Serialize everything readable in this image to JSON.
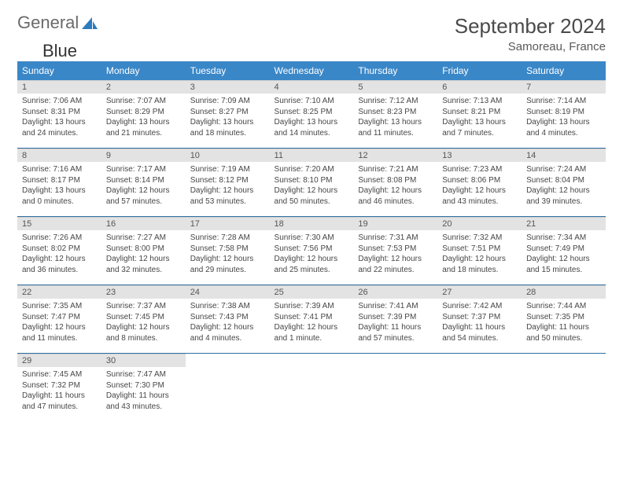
{
  "brand": {
    "part1": "General",
    "part2": "Blue"
  },
  "header": {
    "month_title": "September 2024",
    "location": "Samoreau, France"
  },
  "weekdays": [
    "Sunday",
    "Monday",
    "Tuesday",
    "Wednesday",
    "Thursday",
    "Friday",
    "Saturday"
  ],
  "colors": {
    "header_bg": "#3a87c8",
    "header_text": "#ffffff",
    "daynum_bg": "#e3e3e3",
    "row_divider": "#2e6ea3",
    "brand_accent": "#2b7bbd",
    "brand_gray": "#6a6a6a"
  },
  "grid": [
    [
      {
        "n": "1",
        "sr": "Sunrise: 7:06 AM",
        "ss": "Sunset: 8:31 PM",
        "d1": "Daylight: 13 hours",
        "d2": "and 24 minutes."
      },
      {
        "n": "2",
        "sr": "Sunrise: 7:07 AM",
        "ss": "Sunset: 8:29 PM",
        "d1": "Daylight: 13 hours",
        "d2": "and 21 minutes."
      },
      {
        "n": "3",
        "sr": "Sunrise: 7:09 AM",
        "ss": "Sunset: 8:27 PM",
        "d1": "Daylight: 13 hours",
        "d2": "and 18 minutes."
      },
      {
        "n": "4",
        "sr": "Sunrise: 7:10 AM",
        "ss": "Sunset: 8:25 PM",
        "d1": "Daylight: 13 hours",
        "d2": "and 14 minutes."
      },
      {
        "n": "5",
        "sr": "Sunrise: 7:12 AM",
        "ss": "Sunset: 8:23 PM",
        "d1": "Daylight: 13 hours",
        "d2": "and 11 minutes."
      },
      {
        "n": "6",
        "sr": "Sunrise: 7:13 AM",
        "ss": "Sunset: 8:21 PM",
        "d1": "Daylight: 13 hours",
        "d2": "and 7 minutes."
      },
      {
        "n": "7",
        "sr": "Sunrise: 7:14 AM",
        "ss": "Sunset: 8:19 PM",
        "d1": "Daylight: 13 hours",
        "d2": "and 4 minutes."
      }
    ],
    [
      {
        "n": "8",
        "sr": "Sunrise: 7:16 AM",
        "ss": "Sunset: 8:17 PM",
        "d1": "Daylight: 13 hours",
        "d2": "and 0 minutes."
      },
      {
        "n": "9",
        "sr": "Sunrise: 7:17 AM",
        "ss": "Sunset: 8:14 PM",
        "d1": "Daylight: 12 hours",
        "d2": "and 57 minutes."
      },
      {
        "n": "10",
        "sr": "Sunrise: 7:19 AM",
        "ss": "Sunset: 8:12 PM",
        "d1": "Daylight: 12 hours",
        "d2": "and 53 minutes."
      },
      {
        "n": "11",
        "sr": "Sunrise: 7:20 AM",
        "ss": "Sunset: 8:10 PM",
        "d1": "Daylight: 12 hours",
        "d2": "and 50 minutes."
      },
      {
        "n": "12",
        "sr": "Sunrise: 7:21 AM",
        "ss": "Sunset: 8:08 PM",
        "d1": "Daylight: 12 hours",
        "d2": "and 46 minutes."
      },
      {
        "n": "13",
        "sr": "Sunrise: 7:23 AM",
        "ss": "Sunset: 8:06 PM",
        "d1": "Daylight: 12 hours",
        "d2": "and 43 minutes."
      },
      {
        "n": "14",
        "sr": "Sunrise: 7:24 AM",
        "ss": "Sunset: 8:04 PM",
        "d1": "Daylight: 12 hours",
        "d2": "and 39 minutes."
      }
    ],
    [
      {
        "n": "15",
        "sr": "Sunrise: 7:26 AM",
        "ss": "Sunset: 8:02 PM",
        "d1": "Daylight: 12 hours",
        "d2": "and 36 minutes."
      },
      {
        "n": "16",
        "sr": "Sunrise: 7:27 AM",
        "ss": "Sunset: 8:00 PM",
        "d1": "Daylight: 12 hours",
        "d2": "and 32 minutes."
      },
      {
        "n": "17",
        "sr": "Sunrise: 7:28 AM",
        "ss": "Sunset: 7:58 PM",
        "d1": "Daylight: 12 hours",
        "d2": "and 29 minutes."
      },
      {
        "n": "18",
        "sr": "Sunrise: 7:30 AM",
        "ss": "Sunset: 7:56 PM",
        "d1": "Daylight: 12 hours",
        "d2": "and 25 minutes."
      },
      {
        "n": "19",
        "sr": "Sunrise: 7:31 AM",
        "ss": "Sunset: 7:53 PM",
        "d1": "Daylight: 12 hours",
        "d2": "and 22 minutes."
      },
      {
        "n": "20",
        "sr": "Sunrise: 7:32 AM",
        "ss": "Sunset: 7:51 PM",
        "d1": "Daylight: 12 hours",
        "d2": "and 18 minutes."
      },
      {
        "n": "21",
        "sr": "Sunrise: 7:34 AM",
        "ss": "Sunset: 7:49 PM",
        "d1": "Daylight: 12 hours",
        "d2": "and 15 minutes."
      }
    ],
    [
      {
        "n": "22",
        "sr": "Sunrise: 7:35 AM",
        "ss": "Sunset: 7:47 PM",
        "d1": "Daylight: 12 hours",
        "d2": "and 11 minutes."
      },
      {
        "n": "23",
        "sr": "Sunrise: 7:37 AM",
        "ss": "Sunset: 7:45 PM",
        "d1": "Daylight: 12 hours",
        "d2": "and 8 minutes."
      },
      {
        "n": "24",
        "sr": "Sunrise: 7:38 AM",
        "ss": "Sunset: 7:43 PM",
        "d1": "Daylight: 12 hours",
        "d2": "and 4 minutes."
      },
      {
        "n": "25",
        "sr": "Sunrise: 7:39 AM",
        "ss": "Sunset: 7:41 PM",
        "d1": "Daylight: 12 hours",
        "d2": "and 1 minute."
      },
      {
        "n": "26",
        "sr": "Sunrise: 7:41 AM",
        "ss": "Sunset: 7:39 PM",
        "d1": "Daylight: 11 hours",
        "d2": "and 57 minutes."
      },
      {
        "n": "27",
        "sr": "Sunrise: 7:42 AM",
        "ss": "Sunset: 7:37 PM",
        "d1": "Daylight: 11 hours",
        "d2": "and 54 minutes."
      },
      {
        "n": "28",
        "sr": "Sunrise: 7:44 AM",
        "ss": "Sunset: 7:35 PM",
        "d1": "Daylight: 11 hours",
        "d2": "and 50 minutes."
      }
    ],
    [
      {
        "n": "29",
        "sr": "Sunrise: 7:45 AM",
        "ss": "Sunset: 7:32 PM",
        "d1": "Daylight: 11 hours",
        "d2": "and 47 minutes."
      },
      {
        "n": "30",
        "sr": "Sunrise: 7:47 AM",
        "ss": "Sunset: 7:30 PM",
        "d1": "Daylight: 11 hours",
        "d2": "and 43 minutes."
      },
      {
        "empty": true
      },
      {
        "empty": true
      },
      {
        "empty": true
      },
      {
        "empty": true
      },
      {
        "empty": true
      }
    ]
  ]
}
